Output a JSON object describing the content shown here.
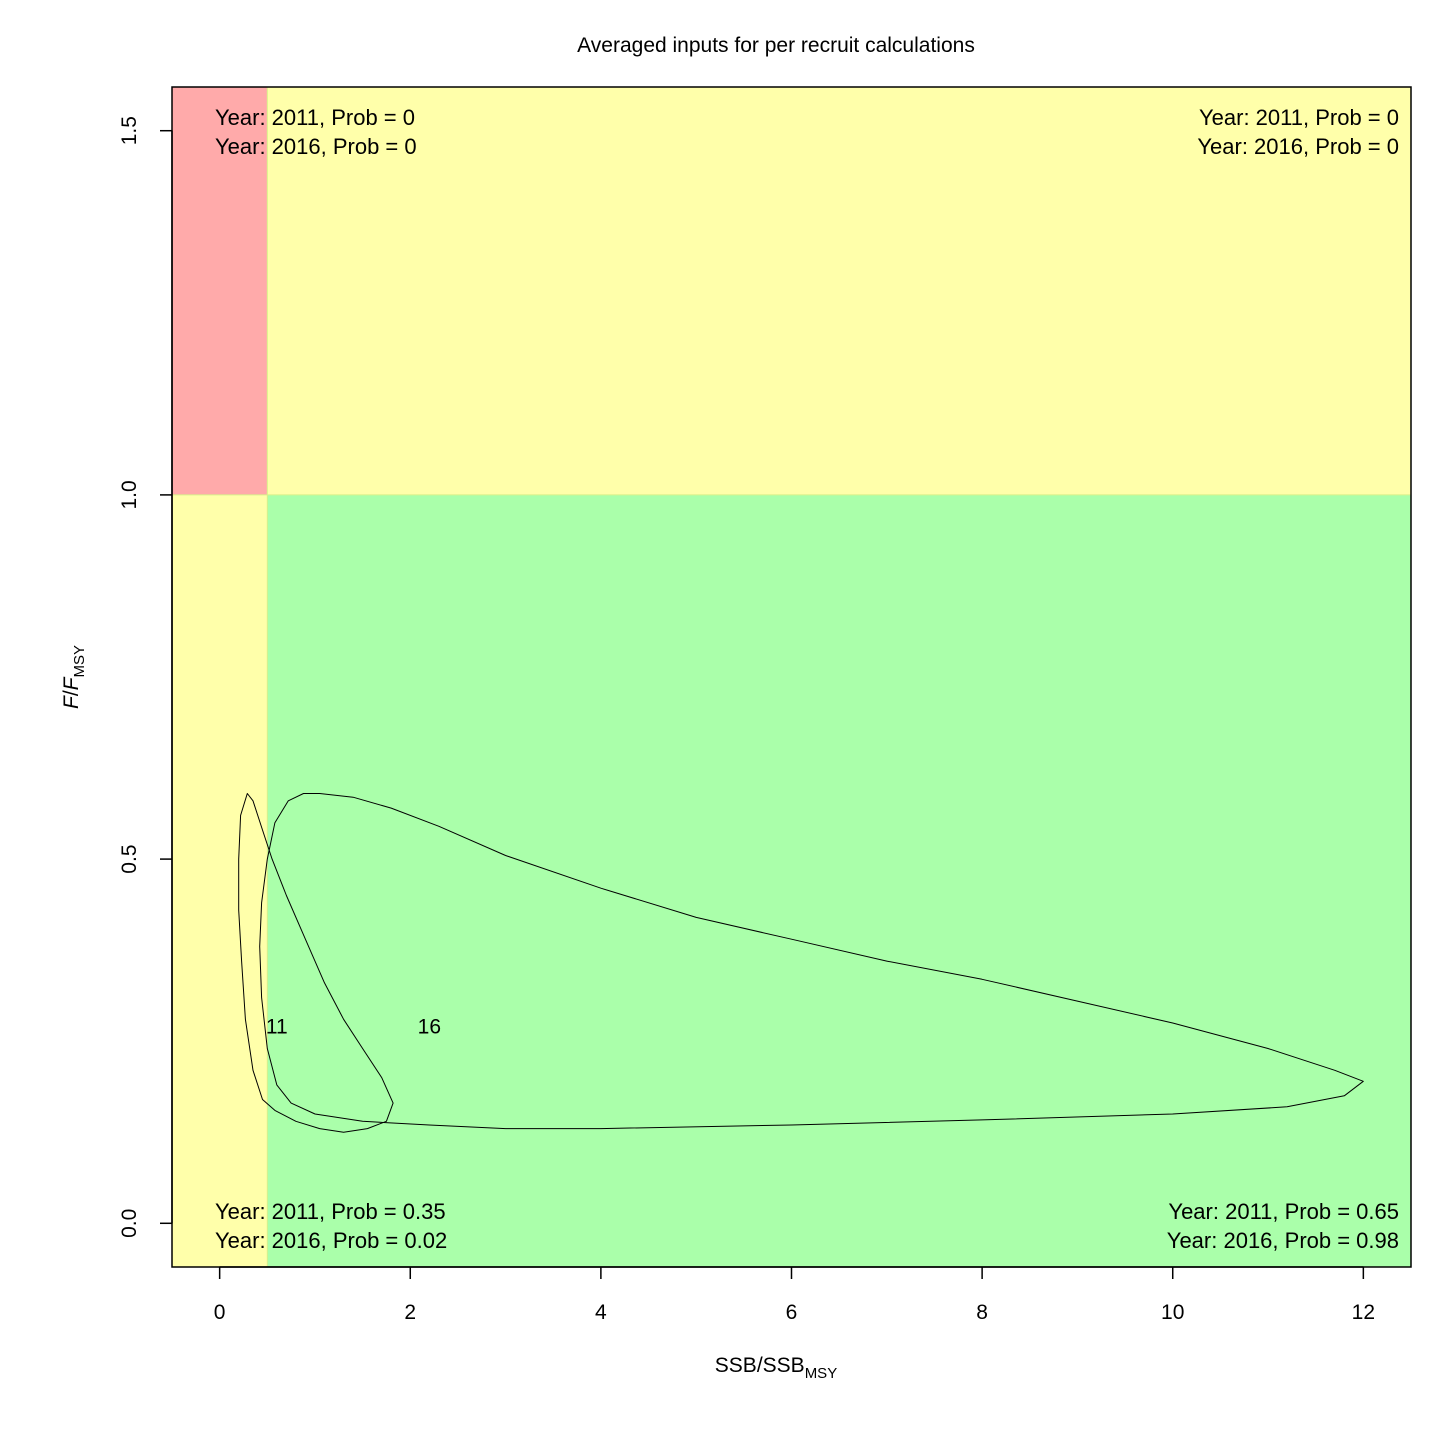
{
  "chart_data": {
    "type": "scatter",
    "title": "Averaged inputs for per recruit calculations",
    "xlabel": {
      "main": "SSB/SSB",
      "sub": "MSY"
    },
    "ylabel": {
      "main": "F",
      "slash": "/",
      "main2": "F",
      "sub": "MSY"
    },
    "xlim": [
      -0.5,
      12.5
    ],
    "ylim": [
      -0.06,
      1.56
    ],
    "x_ticks": [
      0,
      2,
      4,
      6,
      8,
      10,
      12
    ],
    "y_ticks": [
      0.0,
      0.5,
      1.0,
      1.5
    ],
    "x_tick_labels": [
      "0",
      "2",
      "4",
      "6",
      "8",
      "10",
      "12"
    ],
    "y_tick_labels": [
      "0.0",
      "0.5",
      "1.0",
      "1.5"
    ],
    "reference_lines": {
      "ssb_threshold": 0.5,
      "f_threshold": 1.0
    },
    "zones": [
      {
        "name": "red",
        "x": [
          -0.5,
          0.5
        ],
        "y": [
          1.0,
          1.56
        ],
        "color": "#ffaaaa"
      },
      {
        "name": "yellow-top",
        "x": [
          0.5,
          12.5
        ],
        "y": [
          1.0,
          1.56
        ],
        "color": "#ffffaa"
      },
      {
        "name": "yellow-left",
        "x": [
          -0.5,
          0.5
        ],
        "y": [
          -0.06,
          1.0
        ],
        "color": "#ffffaa"
      },
      {
        "name": "green",
        "x": [
          0.5,
          12.5
        ],
        "y": [
          -0.06,
          1.0
        ],
        "color": "#aaffaa"
      }
    ],
    "quadrant_probabilities": {
      "top_left": [
        "Year: 2011, Prob = 0",
        "Year: 2016, Prob = 0"
      ],
      "top_right": [
        "Year: 2011, Prob = 0",
        "Year: 2016, Prob = 0"
      ],
      "bottom_left": [
        "Year: 2011, Prob = 0.35",
        "Year: 2016, Prob = 0.02"
      ],
      "bottom_right": [
        "Year: 2011, Prob = 0.65",
        "Year: 2016, Prob = 0.98"
      ]
    },
    "point_labels": [
      {
        "label": "11",
        "x": 0.6,
        "y": 0.27
      },
      {
        "label": "16",
        "x": 2.2,
        "y": 0.27
      }
    ],
    "contours": [
      {
        "year": "2011",
        "points": [
          [
            0.29,
            0.59
          ],
          [
            0.35,
            0.58
          ],
          [
            0.45,
            0.54
          ],
          [
            0.55,
            0.5
          ],
          [
            0.7,
            0.45
          ],
          [
            0.9,
            0.39
          ],
          [
            1.1,
            0.33
          ],
          [
            1.3,
            0.28
          ],
          [
            1.5,
            0.24
          ],
          [
            1.7,
            0.2
          ],
          [
            1.82,
            0.165
          ],
          [
            1.75,
            0.14
          ],
          [
            1.55,
            0.13
          ],
          [
            1.3,
            0.125
          ],
          [
            1.05,
            0.13
          ],
          [
            0.8,
            0.14
          ],
          [
            0.58,
            0.155
          ],
          [
            0.45,
            0.17
          ],
          [
            0.35,
            0.21
          ],
          [
            0.27,
            0.28
          ],
          [
            0.23,
            0.36
          ],
          [
            0.2,
            0.43
          ],
          [
            0.2,
            0.5
          ],
          [
            0.22,
            0.56
          ],
          [
            0.29,
            0.59
          ]
        ]
      },
      {
        "year": "2016",
        "points": [
          [
            1.05,
            0.59
          ],
          [
            1.4,
            0.585
          ],
          [
            1.8,
            0.57
          ],
          [
            2.3,
            0.545
          ],
          [
            3.0,
            0.505
          ],
          [
            4.0,
            0.46
          ],
          [
            5.0,
            0.42
          ],
          [
            6.0,
            0.39
          ],
          [
            7.0,
            0.36
          ],
          [
            8.0,
            0.335
          ],
          [
            9.0,
            0.305
          ],
          [
            10.0,
            0.275
          ],
          [
            11.0,
            0.24
          ],
          [
            11.7,
            0.21
          ],
          [
            12.0,
            0.195
          ],
          [
            11.8,
            0.175
          ],
          [
            11.2,
            0.16
          ],
          [
            10.0,
            0.15
          ],
          [
            8.0,
            0.142
          ],
          [
            6.0,
            0.135
          ],
          [
            4.0,
            0.13
          ],
          [
            3.0,
            0.13
          ],
          [
            2.2,
            0.135
          ],
          [
            1.5,
            0.14
          ],
          [
            1.0,
            0.15
          ],
          [
            0.75,
            0.165
          ],
          [
            0.6,
            0.19
          ],
          [
            0.5,
            0.24
          ],
          [
            0.44,
            0.31
          ],
          [
            0.42,
            0.38
          ],
          [
            0.44,
            0.44
          ],
          [
            0.5,
            0.5
          ],
          [
            0.58,
            0.55
          ],
          [
            0.72,
            0.58
          ],
          [
            0.88,
            0.59
          ],
          [
            1.05,
            0.59
          ]
        ]
      }
    ]
  }
}
